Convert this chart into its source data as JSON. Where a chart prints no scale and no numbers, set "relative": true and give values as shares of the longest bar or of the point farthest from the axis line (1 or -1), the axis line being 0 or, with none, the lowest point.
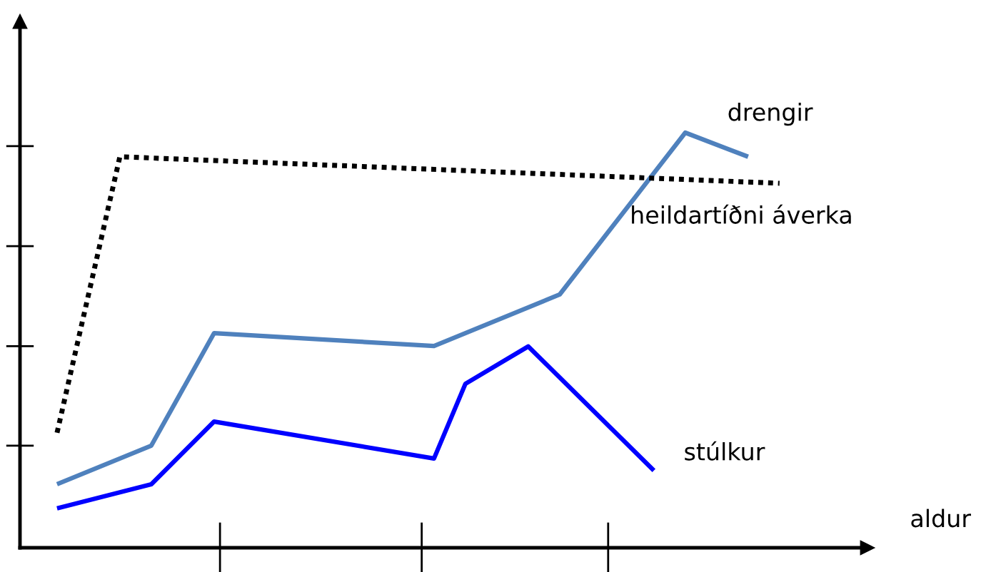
{
  "chart_data": {
    "type": "line",
    "relative": true,
    "xlabel": "aldur",
    "categories": [
      null,
      null,
      null,
      null,
      null,
      null,
      null,
      null,
      null,
      null,
      null,
      null,
      null,
      null,
      null,
      null,
      null,
      null,
      null,
      null,
      null,
      null,
      null,
      null
    ],
    "legend": false,
    "marker": "none",
    "series": [
      {
        "name": "drengir",
        "color": "#4f81bd",
        "line_style": "solid",
        "values": [
          0.153,
          null,
          null,
          0.246,
          null,
          0.517,
          null,
          null,
          null,
          null,
          null,
          null,
          0.486,
          null,
          null,
          null,
          0.61,
          null,
          null,
          null,
          1.0,
          null,
          0.942,
          null
        ]
      },
      {
        "name": "heildartíðni áverka",
        "color": "#000000",
        "line_style": "dotted",
        "values": [
          0.277,
          null,
          0.942,
          null,
          null,
          null,
          null,
          null,
          null,
          null,
          null,
          null,
          null,
          null,
          null,
          null,
          null,
          null,
          null,
          null,
          null,
          null,
          null,
          0.878
        ]
      },
      {
        "name": "stúlkur",
        "color": "#0000ff",
        "line_style": "solid",
        "values": [
          0.095,
          null,
          null,
          0.153,
          null,
          0.304,
          null,
          null,
          null,
          null,
          null,
          null,
          0.215,
          0.395,
          null,
          0.485,
          null,
          null,
          null,
          0.186,
          null,
          null,
          null,
          null
        ]
      }
    ]
  }
}
